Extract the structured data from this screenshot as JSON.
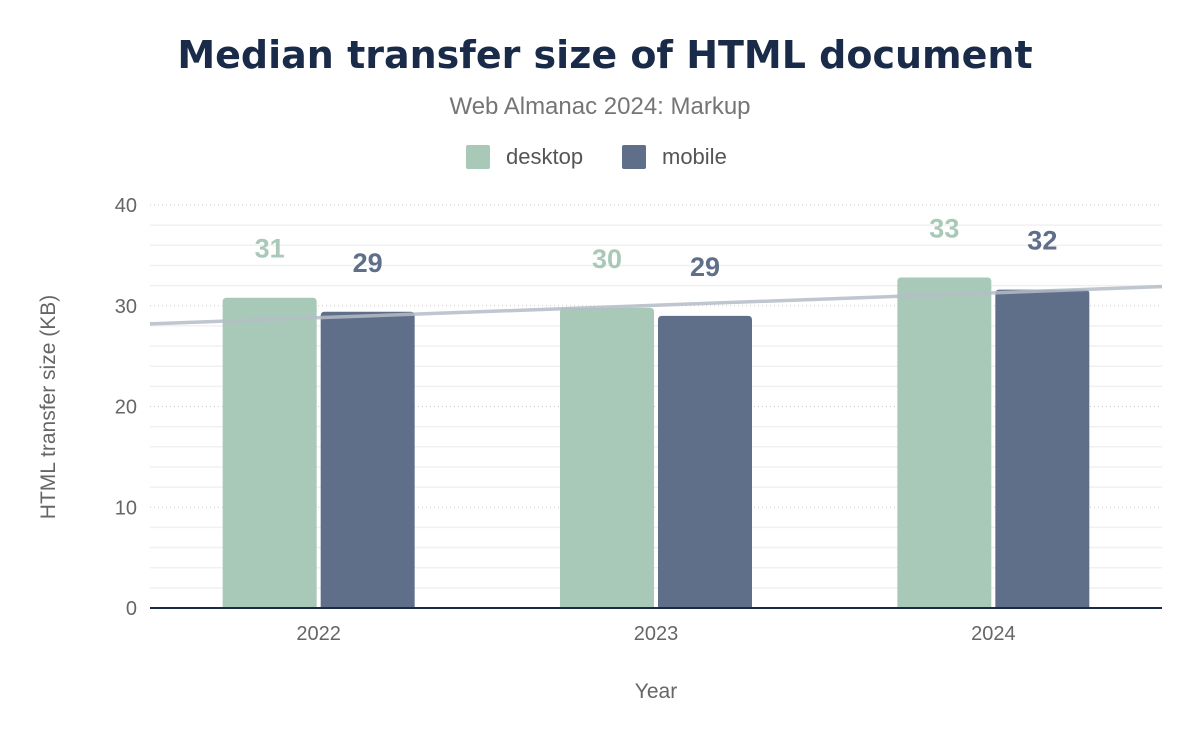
{
  "chart_data": {
    "type": "bar",
    "title": "Median transfer size of HTML document",
    "subtitle": "Web Almanac 2024: Markup",
    "xlabel": "Year",
    "ylabel": "HTML transfer size (KB)",
    "categories": [
      "2022",
      "2023",
      "2024"
    ],
    "series": [
      {
        "name": "desktop",
        "color": "#a8c9b8",
        "values": [
          30.8,
          29.8,
          32.8
        ],
        "labels": [
          "31",
          "30",
          "33"
        ]
      },
      {
        "name": "mobile",
        "color": "#5f6f8a",
        "values": [
          29.4,
          29.0,
          31.6
        ],
        "labels": [
          "29",
          "29",
          "32"
        ]
      }
    ],
    "trendline": {
      "color": "#b5bcc7",
      "start": 28.2,
      "end": 31.9
    },
    "ylim": [
      0,
      40
    ],
    "yticks": [
      "0",
      "10",
      "20",
      "30",
      "40"
    ],
    "grid": true,
    "legend_position": "top-center"
  }
}
